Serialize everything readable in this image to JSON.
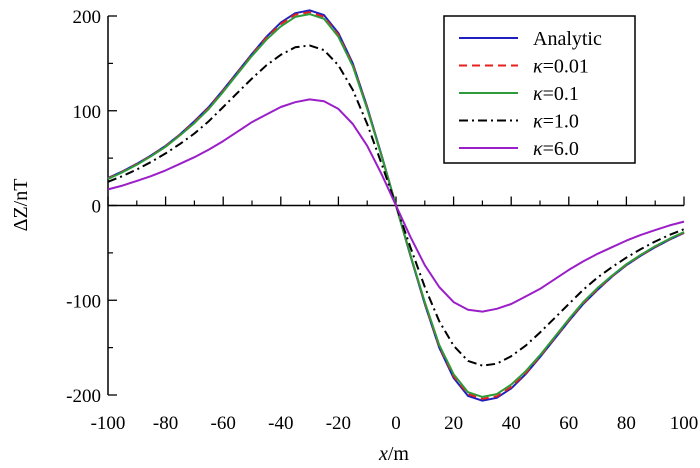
{
  "chart_data": {
    "type": "line",
    "title": "",
    "xlabel": {
      "var": "x",
      "unit": "/m"
    },
    "ylabel": "ΔZ/nT",
    "xlim": [
      -100,
      100
    ],
    "ylim": [
      -200,
      200
    ],
    "xticks": [
      -100,
      -80,
      -60,
      -40,
      -20,
      0,
      20,
      40,
      60,
      80,
      100
    ],
    "yticks": [
      -200,
      -100,
      0,
      100,
      200
    ],
    "grid": false,
    "legend_position": "top-right",
    "legend_symbol": "κ",
    "x": [
      -100,
      -95,
      -90,
      -85,
      -80,
      -75,
      -70,
      -65,
      -60,
      -55,
      -50,
      -45,
      -40,
      -35,
      -30,
      -25,
      -20,
      -15,
      -10,
      -5,
      0,
      5,
      10,
      15,
      20,
      25,
      30,
      35,
      40,
      45,
      50,
      55,
      60,
      65,
      70,
      75,
      80,
      85,
      90,
      95,
      100
    ],
    "series": [
      {
        "name": "Analytic",
        "label_prefix": "",
        "label_value": "Analytic",
        "color": "#1f1fbf",
        "dash": "solid",
        "values": [
          29,
          36,
          44,
          53,
          63,
          75,
          89,
          104,
          122,
          141,
          160,
          178,
          193,
          203,
          206,
          201,
          182,
          150,
          104,
          53,
          0,
          -53,
          -104,
          -150,
          -182,
          -201,
          -206,
          -203,
          -193,
          -178,
          -160,
          -141,
          -122,
          -104,
          -89,
          -75,
          -63,
          -53,
          -44,
          -36,
          -29
        ]
      },
      {
        "name": "κ=0.01",
        "label_prefix": "κ",
        "label_value": "=0.01",
        "color": "#e8201c",
        "dash": "dashed",
        "values": [
          28.5,
          35.5,
          43.5,
          52.5,
          62.5,
          74.5,
          88,
          103,
          121,
          140,
          159,
          177,
          191.5,
          201.5,
          204,
          199,
          180,
          148.5,
          103,
          52.5,
          0,
          -52.5,
          -103,
          -148.5,
          -180,
          -199,
          -204,
          -201.5,
          -191.5,
          -177,
          -159,
          -140,
          -121,
          -103,
          -88,
          -74.5,
          -62.5,
          -52.5,
          -43.5,
          -35.5,
          -28.5
        ]
      },
      {
        "name": "κ=0.1",
        "label_prefix": "κ",
        "label_value": "=0.1",
        "color": "#2e9b3a",
        "dash": "solid",
        "values": [
          28,
          35,
          43,
          52,
          62,
          74,
          87,
          102,
          120,
          139,
          158,
          175,
          189,
          199,
          202,
          197,
          178,
          147,
          102,
          52,
          0,
          -52,
          -102,
          -147,
          -178,
          -197,
          -202,
          -199,
          -189,
          -175,
          -158,
          -139,
          -120,
          -102,
          -87,
          -74,
          -62,
          -52,
          -43,
          -35,
          -28
        ]
      },
      {
        "name": "κ=1.0",
        "label_prefix": "κ",
        "label_value": "=1.0",
        "color": "#000000",
        "dash": "dashdot",
        "values": [
          25,
          31,
          38,
          46,
          55,
          65,
          76,
          89,
          104,
          119,
          134,
          148,
          159,
          167,
          169,
          164,
          148,
          122,
          86,
          44,
          0,
          -44,
          -86,
          -122,
          -148,
          -164,
          -169,
          -167,
          -159,
          -148,
          -134,
          -119,
          -104,
          -89,
          -76,
          -65,
          -55,
          -46,
          -38,
          -31,
          -25
        ]
      },
      {
        "name": "κ=6.0",
        "label_prefix": "κ",
        "label_value": "=6.0",
        "color": "#9b1fc8",
        "dash": "solid",
        "values": [
          17,
          21,
          26,
          31,
          37,
          44,
          51,
          59,
          68,
          78,
          88,
          96,
          104,
          109,
          112,
          110,
          102,
          86,
          63,
          33,
          0,
          -33,
          -63,
          -86,
          -102,
          -110,
          -112,
          -109,
          -104,
          -96,
          -88,
          -78,
          -68,
          -59,
          -51,
          -44,
          -37,
          -31,
          -26,
          -21,
          -17
        ]
      }
    ]
  }
}
